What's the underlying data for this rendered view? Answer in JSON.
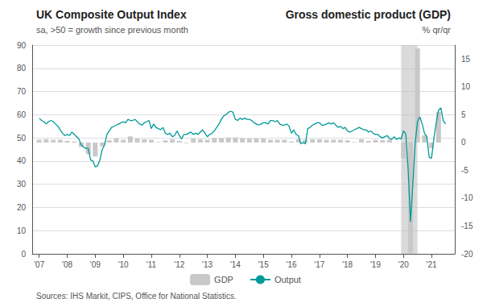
{
  "chart_data": {
    "type": "combo",
    "title": "UK Composite Output Index",
    "subtitle": "sa, >50 = growth since previous month",
    "title_right": "Gross domestic product (GDP)",
    "subtitle_right": "% qr/qr",
    "source": "Sources: IHS Markit, CIPS, Office for National Statistics.",
    "xlim": [
      2006.75,
      2021.83
    ],
    "xticks": [
      {
        "value": 2007,
        "label": "'07"
      },
      {
        "value": 2008,
        "label": "'08"
      },
      {
        "value": 2009,
        "label": "'09"
      },
      {
        "value": 2010,
        "label": "'10"
      },
      {
        "value": 2011,
        "label": "'11"
      },
      {
        "value": 2012,
        "label": "'12"
      },
      {
        "value": 2013,
        "label": "'13"
      },
      {
        "value": 2014,
        "label": "'14"
      },
      {
        "value": 2015,
        "label": "'15"
      },
      {
        "value": 2016,
        "label": "'16"
      },
      {
        "value": 2017,
        "label": "'17"
      },
      {
        "value": 2018,
        "label": "'18"
      },
      {
        "value": 2019,
        "label": "'19"
      },
      {
        "value": 2020,
        "label": "'20"
      },
      {
        "value": 2021,
        "label": "'21"
      }
    ],
    "ylim": [
      0,
      90
    ],
    "yticks": [
      0,
      10,
      20,
      30,
      40,
      50,
      60,
      70,
      80,
      90
    ],
    "y2lim": [
      -20,
      17.5
    ],
    "y2ticks": [
      -20,
      -15,
      -10,
      -5,
      0,
      5,
      10,
      15
    ],
    "grid": true,
    "legend": "bottom",
    "shade": {
      "x": [
        2019.917,
        2020.5
      ],
      "color": "#bbbbbb"
    },
    "series": [
      {
        "name": "GDP",
        "type": "bar",
        "color": "#c8c8c8",
        "axis": "y2",
        "x": [
          2007.0,
          2007.25,
          2007.5,
          2007.75,
          2008.0,
          2008.25,
          2008.5,
          2008.75,
          2009.0,
          2009.25,
          2009.5,
          2009.75,
          2010.0,
          2010.25,
          2010.5,
          2010.75,
          2011.0,
          2011.25,
          2011.5,
          2011.75,
          2012.0,
          2012.25,
          2012.5,
          2012.75,
          2013.0,
          2013.25,
          2013.5,
          2013.75,
          2014.0,
          2014.25,
          2014.5,
          2014.75,
          2015.0,
          2015.25,
          2015.5,
          2015.75,
          2016.0,
          2016.25,
          2016.5,
          2016.75,
          2017.0,
          2017.25,
          2017.5,
          2017.75,
          2018.0,
          2018.25,
          2018.5,
          2018.75,
          2019.0,
          2019.25,
          2019.5,
          2019.75,
          2020.0,
          2020.25,
          2020.5,
          2020.75,
          2021.0,
          2021.25
        ],
        "values": [
          0.5,
          0.6,
          0.5,
          0.5,
          0.3,
          0.2,
          -0.8,
          -2.1,
          -2.5,
          -0.7,
          0.4,
          0.7,
          0.5,
          1.1,
          0.7,
          0.6,
          0.5,
          0.1,
          0.4,
          0.6,
          0.3,
          -0.1,
          0.7,
          0.6,
          0.5,
          0.8,
          0.8,
          0.9,
          0.9,
          0.8,
          0.7,
          0.7,
          0.7,
          0.5,
          0.5,
          0.5,
          0.2,
          0.6,
          0.5,
          0.6,
          0.6,
          0.5,
          0.5,
          0.5,
          0.4,
          0.1,
          0.6,
          0.3,
          0.5,
          0.4,
          0.5,
          0.0,
          -2.9,
          -19.8,
          16.9,
          1.3,
          -1.0,
          5.5
        ]
      },
      {
        "name": "Output",
        "type": "line",
        "color": "#009999",
        "x": [
          2007.0,
          2007.083,
          2007.167,
          2007.25,
          2007.333,
          2007.417,
          2007.5,
          2007.583,
          2007.667,
          2007.75,
          2007.833,
          2007.917,
          2008.0,
          2008.083,
          2008.167,
          2008.25,
          2008.333,
          2008.417,
          2008.5,
          2008.583,
          2008.667,
          2008.75,
          2008.833,
          2008.917,
          2009.0,
          2009.083,
          2009.167,
          2009.25,
          2009.333,
          2009.417,
          2009.5,
          2009.583,
          2009.667,
          2009.75,
          2009.833,
          2009.917,
          2010.0,
          2010.083,
          2010.167,
          2010.25,
          2010.333,
          2010.417,
          2010.5,
          2010.583,
          2010.667,
          2010.75,
          2010.833,
          2010.917,
          2011.0,
          2011.083,
          2011.167,
          2011.25,
          2011.333,
          2011.417,
          2011.5,
          2011.583,
          2011.667,
          2011.75,
          2011.833,
          2011.917,
          2012.0,
          2012.083,
          2012.167,
          2012.25,
          2012.333,
          2012.417,
          2012.5,
          2012.583,
          2012.667,
          2012.75,
          2012.833,
          2012.917,
          2013.0,
          2013.083,
          2013.167,
          2013.25,
          2013.333,
          2013.417,
          2013.5,
          2013.583,
          2013.667,
          2013.75,
          2013.833,
          2013.917,
          2014.0,
          2014.083,
          2014.167,
          2014.25,
          2014.333,
          2014.417,
          2014.5,
          2014.583,
          2014.667,
          2014.75,
          2014.833,
          2014.917,
          2015.0,
          2015.083,
          2015.167,
          2015.25,
          2015.333,
          2015.417,
          2015.5,
          2015.583,
          2015.667,
          2015.75,
          2015.833,
          2015.917,
          2016.0,
          2016.083,
          2016.167,
          2016.25,
          2016.333,
          2016.417,
          2016.5,
          2016.583,
          2016.667,
          2016.75,
          2016.833,
          2016.917,
          2017.0,
          2017.083,
          2017.167,
          2017.25,
          2017.333,
          2017.417,
          2017.5,
          2017.583,
          2017.667,
          2017.75,
          2017.833,
          2017.917,
          2018.0,
          2018.083,
          2018.167,
          2018.25,
          2018.333,
          2018.417,
          2018.5,
          2018.583,
          2018.667,
          2018.75,
          2018.833,
          2018.917,
          2019.0,
          2019.083,
          2019.167,
          2019.25,
          2019.333,
          2019.417,
          2019.5,
          2019.583,
          2019.667,
          2019.75,
          2019.833,
          2019.917,
          2020.0,
          2020.083,
          2020.167,
          2020.25,
          2020.333,
          2020.417,
          2020.5,
          2020.583,
          2020.667,
          2020.75,
          2020.833,
          2020.917,
          2021.0,
          2021.083,
          2021.167,
          2021.25,
          2021.333,
          2021.417,
          2021.5
        ],
        "values": [
          58.5,
          57.5,
          57.0,
          56.0,
          57.0,
          57.5,
          57.0,
          56.0,
          55.0,
          53.5,
          52.0,
          51.0,
          51.5,
          51.0,
          52.5,
          51.5,
          50.5,
          49.5,
          47.0,
          46.0,
          45.5,
          45.5,
          40.5,
          40.0,
          37.5,
          38.0,
          40.5,
          45.0,
          47.0,
          51.5,
          53.0,
          54.5,
          55.0,
          55.5,
          56.0,
          56.5,
          57.0,
          56.5,
          58.0,
          57.5,
          57.5,
          58.0,
          57.0,
          56.0,
          55.5,
          56.5,
          57.0,
          57.5,
          54.0,
          56.0,
          54.5,
          54.0,
          53.5,
          54.5,
          52.0,
          51.5,
          52.0,
          50.5,
          51.0,
          53.0,
          51.0,
          49.5,
          51.5,
          51.5,
          52.0,
          52.5,
          51.5,
          52.0,
          51.5,
          52.5,
          53.5,
          52.0,
          50.5,
          51.5,
          52.0,
          53.0,
          54.5,
          56.0,
          58.0,
          59.5,
          60.0,
          61.0,
          61.5,
          61.0,
          58.0,
          57.5,
          58.5,
          58.0,
          58.5,
          58.0,
          58.0,
          57.5,
          56.5,
          56.0,
          55.5,
          56.0,
          56.5,
          56.5,
          56.0,
          57.5,
          57.5,
          57.0,
          57.5,
          56.0,
          55.5,
          55.5,
          56.0,
          55.0,
          52.0,
          53.5,
          51.5,
          51.0,
          47.5,
          48.0,
          47.5,
          54.0,
          54.5,
          55.5,
          56.0,
          56.5,
          56.5,
          55.5,
          55.5,
          56.0,
          56.5,
          56.0,
          56.5,
          55.5,
          54.5,
          55.0,
          54.0,
          54.5,
          53.0,
          52.5,
          53.0,
          53.5,
          54.0,
          54.5,
          54.0,
          53.5,
          53.5,
          52.5,
          53.0,
          52.0,
          51.5,
          51.5,
          50.5,
          50.0,
          50.5,
          51.0,
          49.7,
          49.4,
          50.5,
          49.3,
          50.0,
          49.5,
          53.0,
          51.7,
          36.0,
          13.8,
          30.0,
          47.7,
          57.1,
          59.1,
          56.0,
          52.0,
          50.5,
          41.6,
          41.2,
          49.6,
          56.4,
          62.0,
          62.9,
          57.5,
          56.0
        ]
      }
    ]
  }
}
